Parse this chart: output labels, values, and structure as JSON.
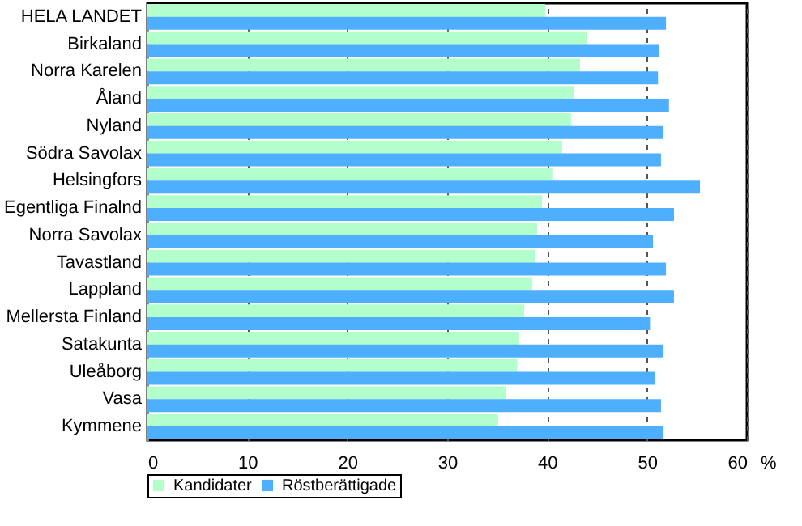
{
  "chart_data": {
    "type": "bar",
    "orientation": "horizontal",
    "xlabel": "%",
    "categories": [
      "HELA LANDET",
      "Birkaland",
      "Norra Karelen",
      "Åland",
      "Nyland",
      "Södra Savolax",
      "Helsingfors",
      "Egentliga Finalnd",
      "Norra Savolax",
      "Tavastland",
      "Lappland",
      "Mellersta Finland",
      "Satakunta",
      "Uleåborg",
      "Vasa",
      "Kymmene"
    ],
    "series": [
      {
        "name": "Kandidater",
        "color": "#b3ffcc",
        "values": [
          39.8,
          44.0,
          43.3,
          42.7,
          42.4,
          41.5,
          40.6,
          39.5,
          39.0,
          38.8,
          38.5,
          37.7,
          37.2,
          37.0,
          35.9,
          35.1
        ]
      },
      {
        "name": "Röstberättigade",
        "color": "#4fafff",
        "values": [
          51.9,
          51.2,
          51.1,
          52.2,
          51.6,
          51.4,
          55.3,
          52.7,
          50.6,
          51.9,
          52.7,
          50.3,
          51.6,
          50.8,
          51.4,
          51.6
        ]
      }
    ],
    "xlim": [
      0,
      60
    ],
    "xticks": [
      0,
      10,
      20,
      30,
      40,
      50,
      60
    ],
    "grid": "x",
    "legend": "bottom"
  }
}
